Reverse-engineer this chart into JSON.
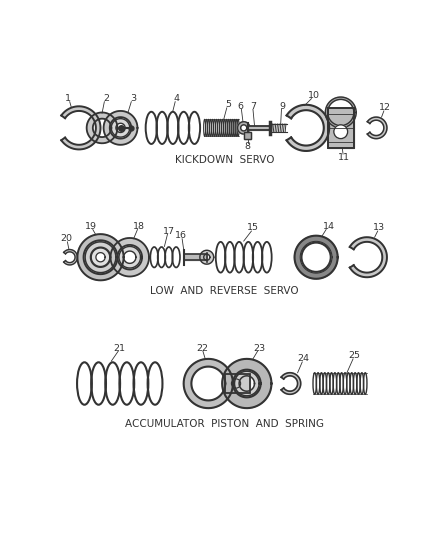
{
  "bg_color": "#ffffff",
  "line_color": "#333333",
  "section1_label": "KICKDOWN  SERVO",
  "section2_label": "LOW  AND  REVERSE  SERVO",
  "section3_label": "ACCUMULATOR  PISTON  AND  SPRING",
  "figsize": [
    4.38,
    5.33
  ],
  "dpi": 100
}
